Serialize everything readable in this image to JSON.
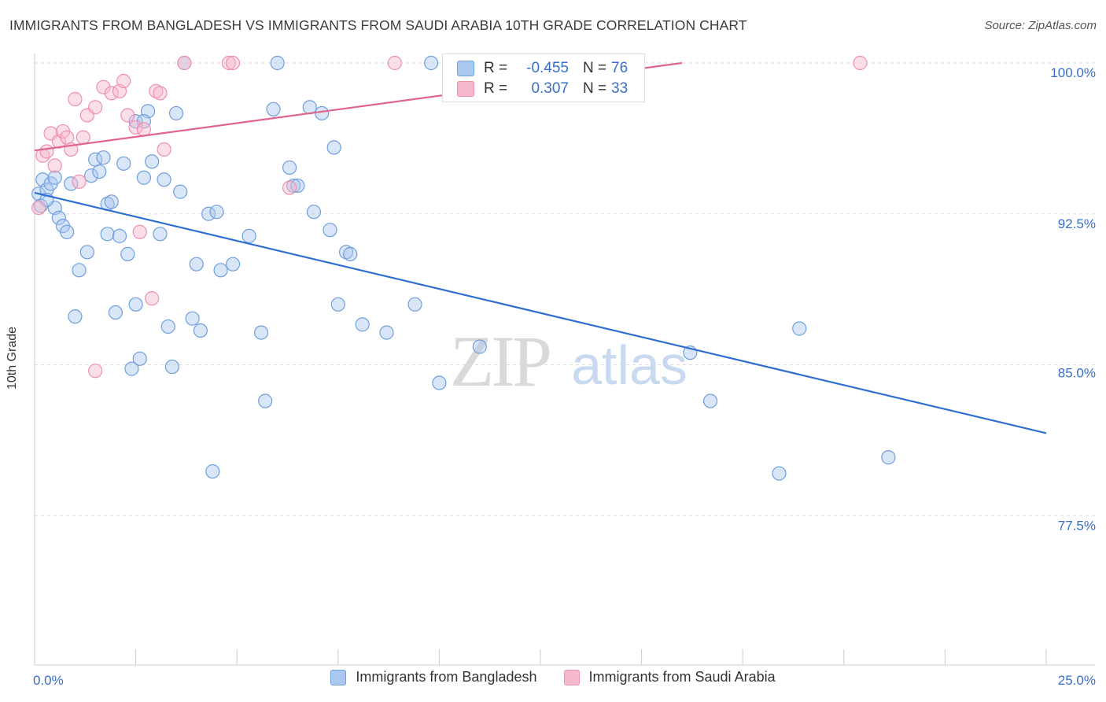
{
  "title": "IMMIGRANTS FROM BANGLADESH VS IMMIGRANTS FROM SAUDI ARABIA 10TH GRADE CORRELATION CHART",
  "source": "Source: ZipAtlas.com",
  "watermark": {
    "zip": "ZIP",
    "atlas": "atlas"
  },
  "colors": {
    "blue_fill": "#aac8f0",
    "blue_stroke": "#6f9fdc",
    "blue_line": "#2f6fd0",
    "pink_fill": "#f6b8cc",
    "pink_stroke": "#ee90ae",
    "pink_line": "#e0648e",
    "grid": "#dddddd",
    "tick_label": "#3a6fc4"
  },
  "stats": [
    {
      "r_label": "R =",
      "r_value": "-0.455",
      "n_label": "N =",
      "n_value": "76"
    },
    {
      "r_label": "R =",
      "r_value": "0.307",
      "n_label": "N =",
      "n_value": "33"
    }
  ],
  "legend": [
    "Immigrants from Bangladesh",
    "Immigrants from Saudi Arabia"
  ],
  "chart_data": {
    "type": "scatter",
    "title": "IMMIGRANTS FROM BANGLADESH VS IMMIGRANTS FROM SAUDI ARABIA 10TH GRADE CORRELATION CHART",
    "xlabel": "",
    "ylabel": "10th Grade",
    "xlim": [
      0,
      25
    ],
    "ylim": [
      70,
      100.8
    ],
    "x_tick_labels": [
      "0.0%",
      "25.0%"
    ],
    "y_ticks": [
      77.5,
      85.0,
      92.5,
      100.0
    ],
    "y_tick_labels": [
      "77.5%",
      "85.0%",
      "92.5%",
      "100.0%"
    ],
    "grid": true,
    "series": [
      {
        "name": "Immigrants from Bangladesh",
        "color": "blue",
        "trend": {
          "x": [
            0,
            25
          ],
          "y": [
            93.55,
            81.6
          ]
        },
        "points": [
          [
            0.1,
            93.5
          ],
          [
            0.2,
            94.2
          ],
          [
            0.3,
            93.7
          ],
          [
            0.4,
            94.0
          ],
          [
            0.5,
            92.8
          ],
          [
            0.5,
            94.3
          ],
          [
            0.6,
            92.3
          ],
          [
            0.7,
            91.9
          ],
          [
            0.8,
            91.6
          ],
          [
            0.9,
            94.0
          ],
          [
            1.0,
            87.4
          ],
          [
            1.1,
            89.7
          ],
          [
            1.3,
            90.6
          ],
          [
            1.4,
            94.4
          ],
          [
            1.5,
            95.2
          ],
          [
            1.6,
            94.6
          ],
          [
            1.7,
            95.3
          ],
          [
            1.8,
            93.0
          ],
          [
            1.8,
            91.5
          ],
          [
            1.9,
            93.1
          ],
          [
            2.0,
            87.6
          ],
          [
            2.1,
            91.4
          ],
          [
            2.2,
            95.0
          ],
          [
            2.3,
            90.5
          ],
          [
            2.4,
            84.8
          ],
          [
            2.5,
            97.1
          ],
          [
            2.5,
            88.0
          ],
          [
            2.6,
            85.3
          ],
          [
            2.7,
            94.3
          ],
          [
            2.8,
            97.6
          ],
          [
            2.9,
            95.1
          ],
          [
            3.1,
            91.5
          ],
          [
            3.2,
            94.2
          ],
          [
            3.3,
            86.9
          ],
          [
            3.4,
            84.9
          ],
          [
            3.5,
            97.5
          ],
          [
            3.6,
            93.6
          ],
          [
            3.7,
            100.0
          ],
          [
            3.9,
            87.3
          ],
          [
            4.0,
            90.0
          ],
          [
            4.1,
            86.7
          ],
          [
            4.3,
            92.5
          ],
          [
            4.4,
            79.7
          ],
          [
            4.5,
            92.6
          ],
          [
            4.6,
            89.7
          ],
          [
            4.9,
            90.0
          ],
          [
            5.3,
            91.4
          ],
          [
            5.6,
            86.6
          ],
          [
            5.7,
            83.2
          ],
          [
            5.9,
            97.7
          ],
          [
            6.0,
            100.0
          ],
          [
            6.3,
            94.8
          ],
          [
            6.4,
            93.9
          ],
          [
            6.5,
            93.9
          ],
          [
            6.8,
            97.8
          ],
          [
            6.9,
            92.6
          ],
          [
            7.1,
            97.5
          ],
          [
            7.3,
            91.7
          ],
          [
            7.4,
            95.8
          ],
          [
            7.5,
            88.0
          ],
          [
            7.7,
            90.6
          ],
          [
            7.8,
            90.5
          ],
          [
            8.1,
            87.0
          ],
          [
            8.7,
            86.6
          ],
          [
            9.4,
            88.0
          ],
          [
            9.8,
            100.0
          ],
          [
            10.0,
            84.1
          ],
          [
            11.0,
            85.9
          ],
          [
            16.2,
            85.6
          ],
          [
            16.7,
            83.2
          ],
          [
            18.4,
            79.6
          ],
          [
            18.9,
            86.8
          ],
          [
            21.1,
            80.4
          ],
          [
            0.15,
            92.9
          ],
          [
            0.3,
            93.2
          ],
          [
            2.7,
            97.1
          ]
        ]
      },
      {
        "name": "Immigrants from Saudi Arabia",
        "color": "pink",
        "trend": {
          "x": [
            0,
            16
          ],
          "y": [
            95.65,
            100.0
          ]
        },
        "points": [
          [
            0.1,
            92.8
          ],
          [
            0.2,
            95.4
          ],
          [
            0.3,
            95.6
          ],
          [
            0.4,
            96.5
          ],
          [
            0.5,
            94.9
          ],
          [
            0.6,
            96.1
          ],
          [
            0.7,
            96.6
          ],
          [
            0.8,
            96.3
          ],
          [
            0.9,
            95.7
          ],
          [
            1.0,
            98.2
          ],
          [
            1.1,
            94.1
          ],
          [
            1.2,
            96.3
          ],
          [
            1.3,
            97.4
          ],
          [
            1.5,
            97.8
          ],
          [
            1.7,
            98.8
          ],
          [
            1.9,
            98.5
          ],
          [
            2.1,
            98.6
          ],
          [
            2.2,
            99.1
          ],
          [
            2.3,
            97.4
          ],
          [
            2.5,
            96.8
          ],
          [
            2.6,
            91.6
          ],
          [
            2.7,
            96.7
          ],
          [
            2.9,
            88.3
          ],
          [
            3.0,
            98.6
          ],
          [
            3.1,
            98.5
          ],
          [
            3.2,
            95.7
          ],
          [
            3.7,
            100.0
          ],
          [
            4.8,
            100.0
          ],
          [
            4.9,
            100.0
          ],
          [
            6.3,
            93.8
          ],
          [
            8.9,
            100.0
          ],
          [
            20.4,
            100.0
          ],
          [
            1.5,
            84.7
          ]
        ]
      }
    ]
  }
}
